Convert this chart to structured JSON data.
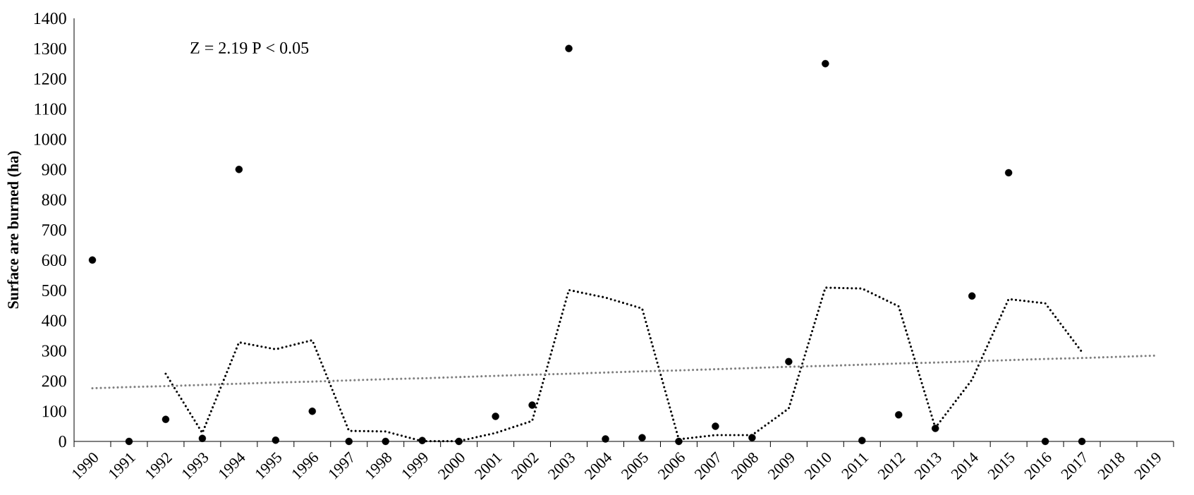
{
  "chart_data": {
    "type": "scatter",
    "categories": [
      "1990",
      "1991",
      "1992",
      "1993",
      "1994",
      "1995",
      "1996",
      "1997",
      "1998",
      "1999",
      "2000",
      "2001",
      "2002",
      "2003",
      "2004",
      "2005",
      "2006",
      "2007",
      "2008",
      "2009",
      "2010",
      "2011",
      "2012",
      "2013",
      "2014",
      "2015",
      "2016",
      "2017",
      "2018",
      "2019"
    ],
    "ylabel": "Surface are burned  (ha)",
    "ylim": [
      0,
      1400
    ],
    "yticks": [
      0,
      100,
      200,
      300,
      400,
      500,
      600,
      700,
      800,
      900,
      1000,
      1100,
      1200,
      1300,
      1400
    ],
    "annotations": [
      "Z =  2.19     P < 0.05"
    ],
    "series": [
      {
        "color": "#000000",
        "marker": "circle",
        "values": [
          600,
          0,
          73,
          10,
          900,
          4,
          100,
          0,
          0,
          3,
          0,
          83,
          120,
          1300,
          8,
          12,
          0,
          50,
          12,
          264,
          1250,
          3,
          88,
          43,
          481,
          889,
          0,
          0,
          null,
          null
        ]
      },
      {
        "type": "line",
        "color": "#000000",
        "marker": "none",
        "line_style": "dotted",
        "values": [
          null,
          null,
          224,
          28,
          328,
          305,
          335,
          35,
          33,
          1,
          1,
          28,
          68,
          501,
          476,
          440,
          7,
          21,
          21,
          109,
          509,
          506,
          447,
          45,
          204,
          471,
          457,
          296,
          null,
          null
        ]
      },
      {
        "type": "line",
        "color": "#808080",
        "marker": "none",
        "line_style": "dotted",
        "values": [
          176,
          180,
          183,
          187,
          191,
          195,
          198,
          202,
          206,
          209,
          213,
          217,
          221,
          224,
          228,
          232,
          235,
          239,
          243,
          247,
          250,
          254,
          258,
          261,
          265,
          269,
          273,
          276,
          280,
          284
        ]
      }
    ]
  }
}
